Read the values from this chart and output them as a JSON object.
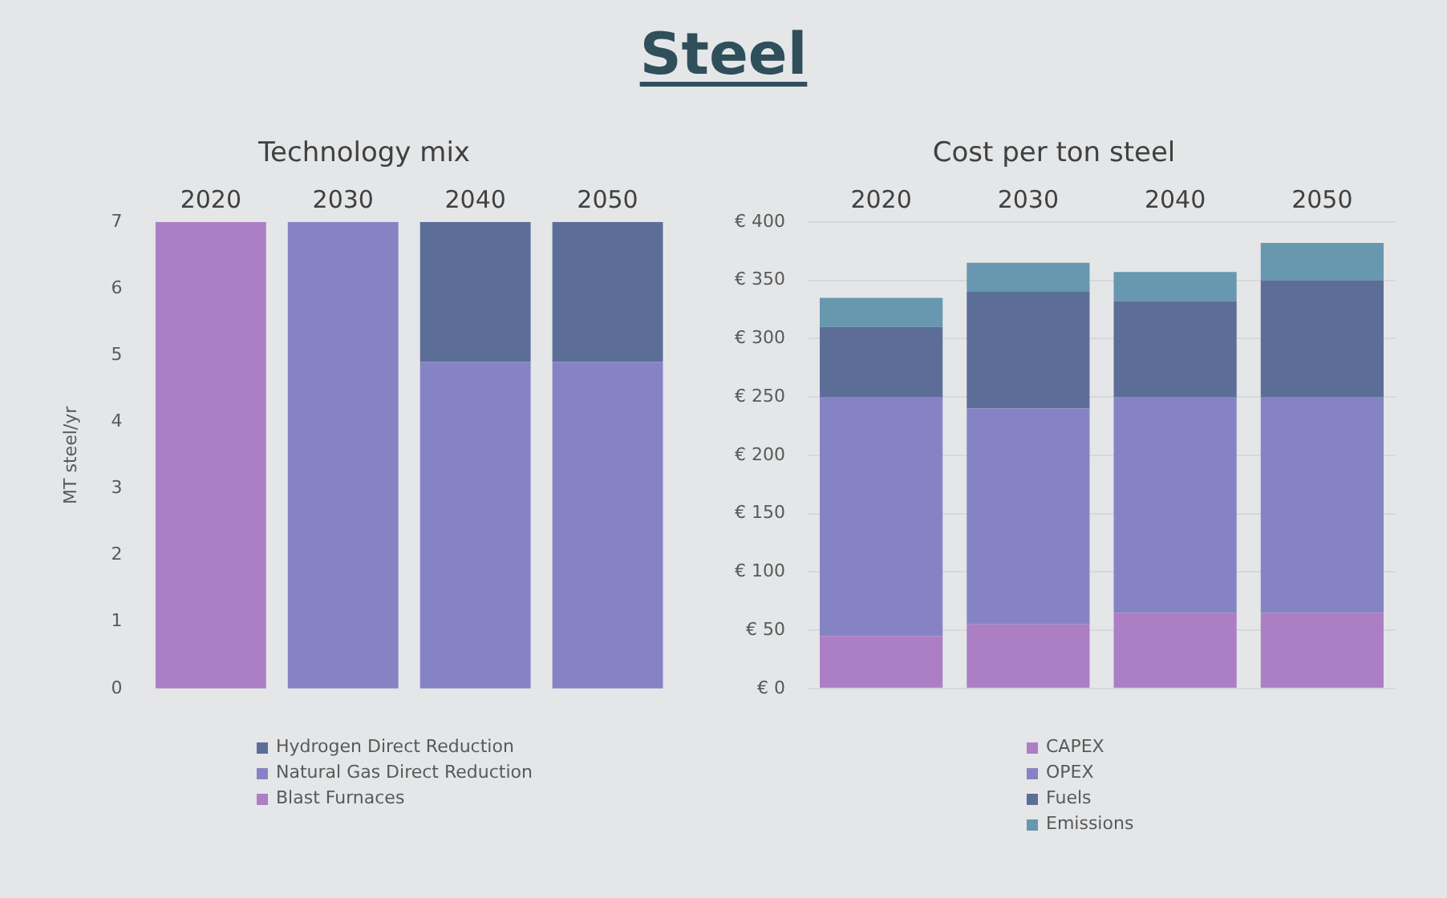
{
  "chart_data": [
    {
      "type": "other",
      "title": "Steel"
    },
    {
      "type": "bar",
      "title": "Technology mix",
      "ylabel": "MT steel/yr",
      "categories": [
        "2020",
        "2030",
        "2040",
        "2050"
      ],
      "stacked": true,
      "series": [
        {
          "name": "Blast Furnaces",
          "color": "#ac7fc4",
          "values": [
            7,
            null,
            null,
            null
          ]
        },
        {
          "name": "Natural Gas Direct Reduction",
          "color": "#8683c5",
          "values": [
            null,
            7,
            4.9,
            4.9
          ]
        },
        {
          "name": "Hydrogen Direct Reduction",
          "color": "#5c6e98",
          "values": [
            null,
            null,
            2.1,
            2.1
          ]
        }
      ],
      "ylim": [
        0,
        7
      ],
      "yticks": [
        0,
        1,
        2,
        3,
        4,
        5,
        6,
        7
      ],
      "grid": false,
      "legend": "bottom"
    },
    {
      "type": "bar",
      "title": "Cost per ton steel",
      "categories": [
        "2020",
        "2030",
        "2040",
        "2050"
      ],
      "stacked": true,
      "series": [
        {
          "name": "CAPEX",
          "color": "#ac7fc4",
          "values": [
            45,
            55,
            65,
            65
          ]
        },
        {
          "name": "OPEX",
          "color": "#8683c5",
          "values": [
            205,
            185,
            185,
            185
          ]
        },
        {
          "name": "Fuels",
          "color": "#5c6e98",
          "values": [
            60,
            100,
            82,
            100
          ]
        },
        {
          "name": "Emissions",
          "color": "#6897b0",
          "values": [
            25,
            25,
            25,
            32
          ]
        }
      ],
      "ylim": [
        0,
        400
      ],
      "yticks": [
        {
          "value": 0,
          "label": "€ 0"
        },
        {
          "value": 50,
          "label": "€ 50"
        },
        {
          "value": 100,
          "label": "€ 100"
        },
        {
          "value": 150,
          "label": "€ 150"
        },
        {
          "value": 200,
          "label": "€ 200"
        },
        {
          "value": 250,
          "label": "€ 250"
        },
        {
          "value": 300,
          "label": "€ 300"
        },
        {
          "value": 350,
          "label": "€ 350"
        },
        {
          "value": 400,
          "label": "€ 400"
        }
      ],
      "grid": "y",
      "legend": "bottom"
    }
  ]
}
